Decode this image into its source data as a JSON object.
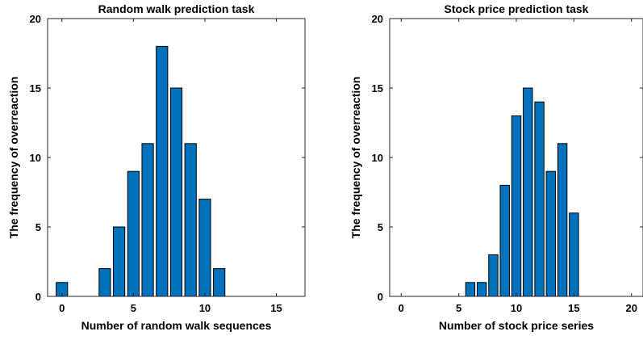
{
  "chart_data": [
    {
      "type": "bar",
      "title": "Random walk prediction task",
      "xlabel": "Number of random walk sequences",
      "ylabel": "The frequency of overreaction",
      "x": [
        0,
        1,
        2,
        3,
        4,
        5,
        6,
        7,
        8,
        9,
        10,
        11,
        12,
        13,
        14,
        15,
        16
      ],
      "values": [
        1,
        0,
        0,
        2,
        5,
        9,
        11,
        18,
        15,
        11,
        7,
        2,
        0,
        0,
        0,
        0,
        0
      ],
      "xlim": [
        -1,
        17
      ],
      "ylim": [
        0,
        20
      ],
      "xticks": [
        0,
        5,
        10,
        15
      ],
      "yticks": [
        0,
        5,
        10,
        15,
        20
      ],
      "bar_color": "#0072BD",
      "grid": false
    },
    {
      "type": "bar",
      "title": "Stock price prediction task",
      "xlabel": "Number of stock price series",
      "ylabel": "The frequency of overreaction",
      "x": [
        0,
        1,
        2,
        3,
        4,
        5,
        6,
        7,
        8,
        9,
        10,
        11,
        12,
        13,
        14,
        15,
        16,
        17,
        18,
        19,
        20
      ],
      "values": [
        0,
        0,
        0,
        0,
        0,
        0,
        1,
        1,
        3,
        8,
        13,
        15,
        14,
        9,
        11,
        6,
        0,
        0,
        0,
        0,
        0
      ],
      "xlim": [
        -1,
        21
      ],
      "ylim": [
        0,
        20
      ],
      "xticks": [
        0,
        5,
        10,
        15,
        20
      ],
      "yticks": [
        0,
        5,
        10,
        15,
        20
      ],
      "bar_color": "#0072BD",
      "grid": false
    }
  ]
}
